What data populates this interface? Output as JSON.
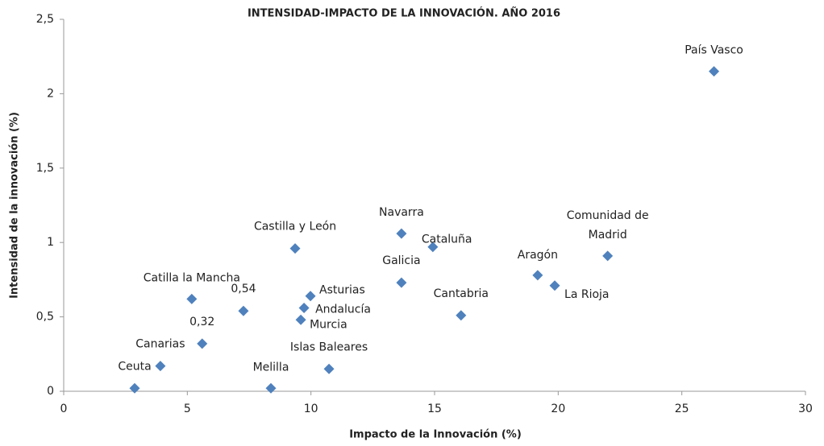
{
  "chart_data": {
    "type": "scatter",
    "title": "INTENSIDAD-IMPACTO DE LA INNOVACIÓN. AÑO 2016",
    "x_label": "Impacto de la Innovación (%)",
    "y_label": "Intensidad de la innovación (%)",
    "color": "#4f81bd",
    "xlim": [
      0,
      30
    ],
    "xticks": [
      0,
      5,
      10,
      15,
      20,
      25,
      30
    ],
    "ylim": [
      0,
      2.5
    ],
    "yticks": [
      0,
      {
        "value": 0.5,
        "label": "0,5"
      },
      1,
      {
        "value": 1.5,
        "label": "1,5"
      },
      2,
      {
        "value": 2.5,
        "label": "2,5"
      }
    ],
    "x": [
      26.3,
      22.0,
      19.17,
      19.86,
      16.07,
      14.93,
      13.66,
      13.66,
      9.36,
      9.98,
      9.72,
      9.59,
      10.73,
      8.38,
      5.18,
      7.27,
      5.6,
      3.91,
      2.87
    ],
    "values": [
      2.15,
      0.91,
      0.78,
      0.71,
      0.51,
      0.97,
      1.06,
      0.73,
      0.96,
      0.64,
      0.56,
      0.48,
      0.15,
      0.02,
      0.62,
      0.54,
      0.32,
      0.17,
      0.02
    ],
    "labels": [
      "País Vasco",
      [
        "Comunidad de",
        "Madrid"
      ],
      "Aragón",
      "La Rioja",
      "Cantabria",
      "Cataluña",
      "Navarra",
      "Galicia",
      "Castilla y León",
      "Asturias",
      "Andalucía",
      "Murcia",
      "Islas Baleares",
      "Melilla",
      "Catilla la Mancha",
      "0,54",
      "0,32",
      "Canarias",
      "Ceuta"
    ]
  }
}
